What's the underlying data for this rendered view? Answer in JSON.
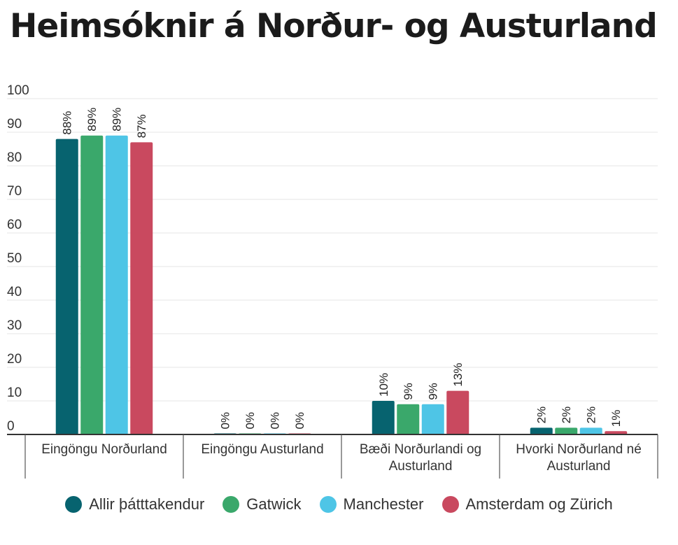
{
  "chart_data": {
    "type": "bar",
    "title": "Heimsóknir á Norður- og Austurland",
    "xlabel": "",
    "ylabel": "",
    "ylim": [
      0,
      100
    ],
    "yticks": [
      0,
      10,
      20,
      30,
      40,
      50,
      60,
      70,
      80,
      90,
      100
    ],
    "grid": true,
    "legend_position": "bottom",
    "categories": [
      [
        "Eingöngu Norðurland"
      ],
      [
        "Eingöngu Austurland"
      ],
      [
        "Bæði Norðurlandi og",
        "Austurland"
      ],
      [
        "Hvorki Norðurland né",
        "Austurland"
      ]
    ],
    "series": [
      {
        "name": "Allir þátttakendur",
        "color": "#07636f",
        "values": [
          88,
          0.3,
          10,
          2
        ],
        "labels": [
          "88%",
          "0%",
          "10%",
          "2%"
        ]
      },
      {
        "name": "Gatwick",
        "color": "#3aa86b",
        "values": [
          89,
          0.3,
          9,
          2
        ],
        "labels": [
          "89%",
          "0%",
          "9%",
          "2%"
        ]
      },
      {
        "name": "Manchester",
        "color": "#4ec5e6",
        "values": [
          89,
          0.3,
          9,
          2
        ],
        "labels": [
          "89%",
          "0%",
          "9%",
          "2%"
        ]
      },
      {
        "name": "Amsterdam og Zürich",
        "color": "#c9495f",
        "values": [
          87,
          0.3,
          13,
          1
        ],
        "labels": [
          "87%",
          "0%",
          "13%",
          "1%"
        ]
      }
    ]
  }
}
